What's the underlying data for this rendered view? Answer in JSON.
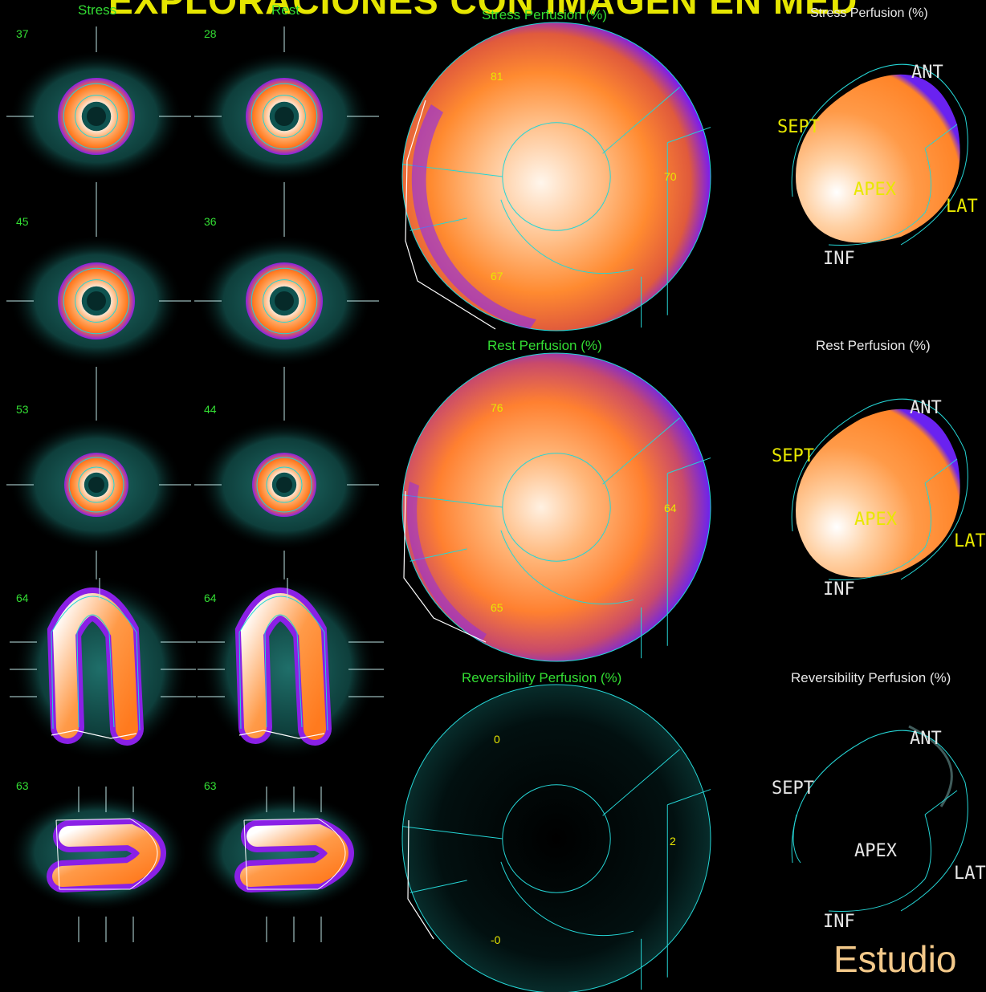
{
  "header": {
    "title": "EXPLORACIONES  CON  IMAGEN EN MED"
  },
  "columns": {
    "stress": "Stress",
    "rest": "Rest"
  },
  "slices": {
    "stress": [
      "37",
      "45",
      "53",
      "64",
      "63"
    ],
    "rest": [
      "28",
      "36",
      "44",
      "64",
      "63"
    ]
  },
  "polar": {
    "stress": {
      "title": "Stress Perfusion (%)",
      "values": [
        "81",
        "70",
        "67"
      ]
    },
    "rest": {
      "title": "Rest Perfusion (%)",
      "values": [
        "76",
        "64",
        "65"
      ]
    },
    "reversibility": {
      "title": "Reversibility Perfusion (%)",
      "values": [
        "0",
        "2",
        "-0"
      ]
    }
  },
  "surface": {
    "stress_title": "Stress Perfusion (%)",
    "rest_title": "Rest Perfusion (%)",
    "reversibility_title": "Reversibility Perfusion (%)",
    "labels": {
      "ant": "ANT",
      "sept": "SEPT",
      "apex": "APEX",
      "lat": "LAT",
      "inf": "INF"
    }
  },
  "colors": {
    "background": "#000000",
    "contour": "#25d5d5",
    "label_green": "#33dd33",
    "orient_yellow": "#e8e800",
    "perfusion_high": "#ffffff",
    "perfusion_mid": "#ff8c2a",
    "perfusion_low": "#7a1cf0"
  },
  "footer": {
    "text": "Estudio"
  }
}
